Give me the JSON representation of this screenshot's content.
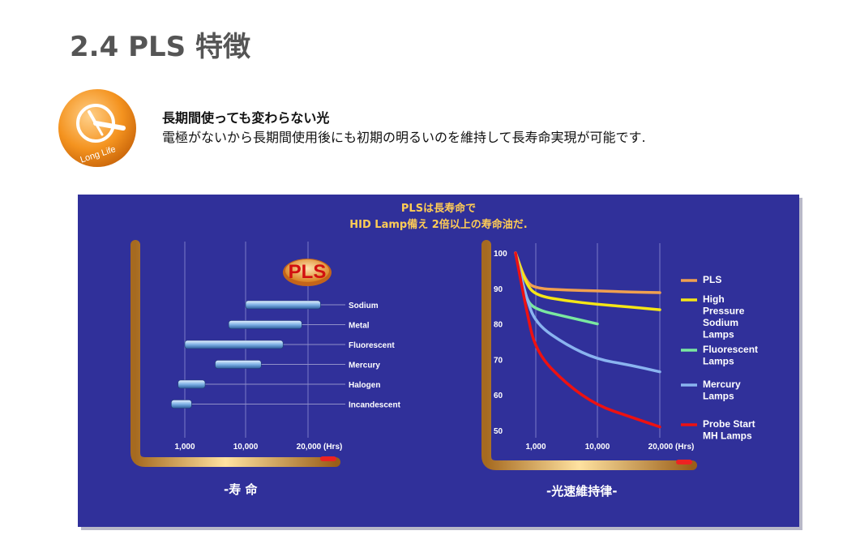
{
  "title": "2.4 PLS 特徴",
  "intro": {
    "line1": "長期間使っても変わらない光",
    "line2": "電極がないから長期間使用後にも初期の明るいのを維持して長寿命実現が可能です."
  },
  "logo": {
    "icon": "clock-icon",
    "text": "Long Life",
    "color": "#f08a1c"
  },
  "panel": {
    "background": "#30309a",
    "headline1": "PLSは長寿命で",
    "headline2": "HID Lamp備え 2倍以上の寿命油だ.",
    "lifetime_caption": "-寿 命",
    "maintenance_caption": "-光速維持律-",
    "pls_badge": "PLS"
  },
  "lifetime_chart": {
    "type": "bar",
    "orientation": "horizontal-range",
    "x_ticks": [
      "1,000",
      "10,000",
      "20,000 (Hrs)"
    ],
    "categories": [
      "Sodium",
      "Metal",
      "Fluorescent",
      "Mercury",
      "Halogen",
      "Incandescent"
    ],
    "ranges": [
      [
        10000,
        22000
      ],
      [
        7500,
        19000
      ],
      [
        1000,
        16000
      ],
      [
        5500,
        12500
      ],
      [
        0,
        4000
      ],
      [
        -1000,
        2000
      ]
    ],
    "xlim": [
      -3000,
      24000
    ]
  },
  "chart_data": {
    "type": "line",
    "y_ticks": [
      "100",
      "90",
      "80",
      "70",
      "60",
      "50"
    ],
    "x_ticks": [
      "1,000",
      "10,000",
      "20,000 (Hrs)"
    ],
    "ylim": [
      45,
      102
    ],
    "x_axis_positions": [
      0,
      1,
      2,
      3
    ],
    "series": [
      {
        "name": "PLS",
        "color": "#f0a050",
        "points": [
          [
            0,
            100
          ],
          [
            0.5,
            92
          ],
          [
            1.0,
            90
          ],
          [
            1.5,
            89.5
          ],
          [
            2.0,
            89.3
          ],
          [
            2.5,
            89
          ],
          [
            3.0,
            88.8
          ]
        ]
      },
      {
        "name": "High Pressure Sodium Lamps",
        "color": "#f5e616",
        "points": [
          [
            0,
            100
          ],
          [
            0.5,
            91.5
          ],
          [
            1.0,
            88
          ],
          [
            1.5,
            86.5
          ],
          [
            2.0,
            85.5
          ],
          [
            2.5,
            84.8
          ],
          [
            3.0,
            84
          ]
        ]
      },
      {
        "name": "Fluorescent Lamps",
        "color": "#7ae8a0",
        "points": [
          [
            0,
            100
          ],
          [
            0.5,
            87
          ],
          [
            1.0,
            84
          ],
          [
            1.5,
            82
          ],
          [
            2.0,
            80
          ]
        ]
      },
      {
        "name": "Mercury Lamps",
        "color": "#8ab4f0",
        "points": [
          [
            0,
            100
          ],
          [
            0.5,
            88
          ],
          [
            1.0,
            80
          ],
          [
            1.5,
            74
          ],
          [
            2.0,
            70
          ],
          [
            2.5,
            68.5
          ],
          [
            3.0,
            66.5
          ]
        ]
      },
      {
        "name": "Probe Start MH Lamps",
        "color": "#ee1111",
        "points": [
          [
            0,
            100
          ],
          [
            0.5,
            85
          ],
          [
            1.0,
            72
          ],
          [
            1.5,
            63
          ],
          [
            2.0,
            57
          ],
          [
            2.5,
            54
          ],
          [
            3.0,
            51
          ]
        ]
      }
    ],
    "legend": [
      {
        "lines": [
          "PLS"
        ],
        "color": "#f0a050"
      },
      {
        "lines": [
          "High",
          "Pressure",
          "Sodium",
          "Lamps"
        ],
        "color": "#f5e616"
      },
      {
        "lines": [
          "Fluorescent",
          "Lamps"
        ],
        "color": "#7ae8a0"
      },
      {
        "lines": [
          "Mercury",
          "Lamps"
        ],
        "color": "#8ab4f0"
      },
      {
        "lines": [
          "Probe Start",
          "MH Lamps"
        ],
        "color": "#ee1111"
      }
    ]
  }
}
